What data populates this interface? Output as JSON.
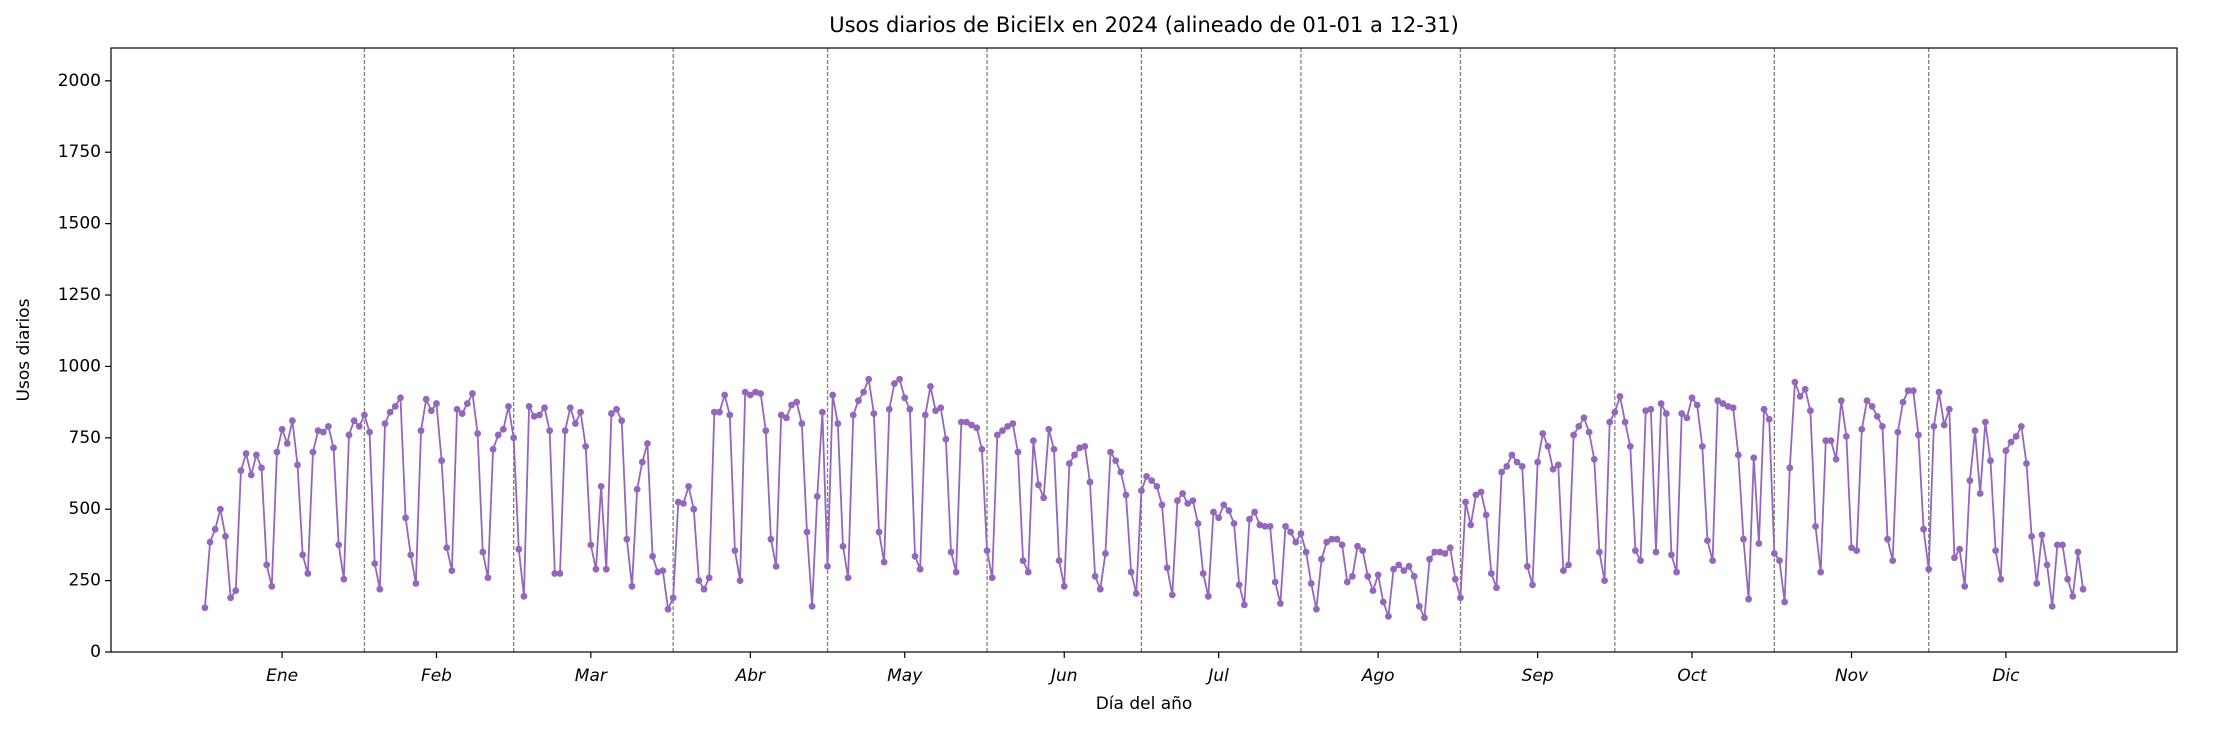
{
  "chart_data": {
    "type": "line",
    "title": "Usos diarios de BiciElx en 2024 (alineado de 01-01 a 12-31)",
    "xlabel": "Día del año",
    "ylabel": "Usos diarios",
    "color": "#9467bd",
    "x": [
      1,
      2,
      3,
      4,
      5,
      6,
      7,
      8,
      9,
      10,
      11,
      12,
      13,
      14,
      15,
      16,
      17,
      18,
      19,
      20,
      21,
      22,
      23,
      24,
      25,
      26,
      27,
      28,
      29,
      30,
      31,
      32,
      33,
      34,
      35,
      36,
      37,
      38,
      39,
      40,
      41,
      42,
      43,
      44,
      45,
      46,
      47,
      48,
      49,
      50,
      51,
      52,
      53,
      54,
      55,
      56,
      57,
      58,
      59,
      60,
      61,
      62,
      63,
      64,
      65,
      66,
      67,
      68,
      69,
      70,
      71,
      72,
      73,
      74,
      75,
      76,
      77,
      78,
      79,
      80,
      81,
      82,
      83,
      84,
      85,
      86,
      87,
      88,
      89,
      90,
      91,
      92,
      93,
      94,
      95,
      96,
      97,
      98,
      99,
      100,
      101,
      102,
      103,
      104,
      105,
      106,
      107,
      108,
      109,
      110,
      111,
      112,
      113,
      114,
      115,
      116,
      117,
      118,
      119,
      120,
      121,
      122,
      123,
      124,
      125,
      126,
      127,
      128,
      129,
      130,
      131,
      132,
      133,
      134,
      135,
      136,
      137,
      138,
      139,
      140,
      141,
      142,
      143,
      144,
      145,
      146,
      147,
      148,
      149,
      150,
      151,
      152,
      153,
      154,
      155,
      156,
      157,
      158,
      159,
      160,
      161,
      162,
      163,
      164,
      165,
      166,
      167,
      168,
      169,
      170,
      171,
      172,
      173,
      174,
      175,
      176,
      177,
      178,
      179,
      180,
      181,
      182,
      183,
      184,
      185,
      186,
      187,
      188,
      189,
      190,
      191,
      192,
      193,
      194,
      195,
      196,
      197,
      198,
      199,
      200,
      201,
      202,
      203,
      204,
      205,
      206,
      207,
      208,
      209,
      210,
      211,
      212,
      213,
      214,
      215,
      216,
      217,
      218,
      219,
      220,
      221,
      222,
      223,
      224,
      225,
      226,
      227,
      228,
      229,
      230,
      231,
      232,
      233,
      234,
      235,
      236,
      237,
      238,
      239,
      240,
      241,
      242,
      243,
      244,
      245,
      246,
      247,
      248,
      249,
      250,
      251,
      252,
      253,
      254,
      255,
      256,
      257,
      258,
      259,
      260,
      261,
      262,
      263,
      264,
      265,
      266,
      267,
      268,
      269,
      270,
      271,
      272,
      273,
      274,
      275,
      276,
      277,
      278,
      279,
      280,
      281,
      282,
      283,
      284,
      285,
      286,
      287,
      288,
      289,
      290,
      291,
      292,
      293,
      294,
      295,
      296,
      297,
      298,
      299,
      300,
      301,
      302,
      303,
      304,
      305,
      306,
      307,
      308,
      309,
      310,
      311,
      312,
      313,
      314,
      315,
      316,
      317,
      318,
      319,
      320,
      321,
      322,
      323,
      324,
      325,
      326,
      327,
      328,
      329,
      330,
      331,
      332,
      333,
      334,
      335,
      336,
      337,
      338,
      339,
      340,
      341,
      342,
      343,
      344,
      345,
      346,
      347,
      348,
      349,
      350,
      351,
      352,
      353,
      354,
      355,
      356,
      357,
      358,
      359,
      360,
      361,
      362,
      363,
      364,
      365,
      366
    ],
    "values": [
      155,
      385,
      430,
      500,
      405,
      190,
      215,
      635,
      695,
      620,
      690,
      645,
      305,
      230,
      700,
      780,
      730,
      810,
      655,
      340,
      275,
      700,
      775,
      770,
      790,
      715,
      375,
      255,
      760,
      810,
      790,
      830,
      770,
      310,
      220,
      800,
      840,
      860,
      890,
      470,
      340,
      240,
      775,
      885,
      845,
      870,
      670,
      365,
      285,
      850,
      835,
      870,
      905,
      765,
      350,
      260,
      710,
      760,
      780,
      860,
      750,
      360,
      195,
      860,
      825,
      830,
      855,
      775,
      275,
      275,
      775,
      855,
      800,
      840,
      720,
      375,
      290,
      580,
      290,
      835,
      850,
      810,
      395,
      230,
      570,
      665,
      730,
      335,
      280,
      285,
      150,
      190,
      525,
      520,
      580,
      500,
      250,
      220,
      260,
      840,
      840,
      900,
      830,
      355,
      250,
      910,
      900,
      910,
      905,
      775,
      395,
      300,
      830,
      820,
      865,
      875,
      800,
      420,
      160,
      545,
      840,
      300,
      900,
      800,
      370,
      260,
      830,
      880,
      910,
      955,
      835,
      420,
      315,
      850,
      940,
      955,
      890,
      850,
      335,
      290,
      830,
      930,
      845,
      855,
      745,
      350,
      280,
      805,
      805,
      795,
      785,
      710,
      355,
      260,
      760,
      775,
      790,
      800,
      700,
      320,
      280,
      740,
      585,
      540,
      780,
      710,
      320,
      230,
      660,
      690,
      715,
      720,
      595,
      265,
      220,
      345,
      700,
      670,
      630,
      550,
      280,
      205,
      565,
      615,
      600,
      580,
      515,
      295,
      200,
      530,
      555,
      520,
      530,
      450,
      275,
      195,
      490,
      470,
      515,
      495,
      450,
      235,
      165,
      465,
      490,
      445,
      440,
      440,
      245,
      170,
      440,
      420,
      385,
      415,
      350,
      240,
      150,
      325,
      385,
      395,
      395,
      375,
      245,
      265,
      370,
      355,
      265,
      215,
      270,
      175,
      125,
      290,
      305,
      285,
      300,
      265,
      160,
      120,
      325,
      350,
      350,
      345,
      365,
      255,
      190,
      525,
      445,
      550,
      560,
      480,
      275,
      225,
      630,
      650,
      690,
      665,
      650,
      300,
      235,
      665,
      765,
      720,
      640,
      655,
      285,
      305,
      760,
      790,
      820,
      770,
      675,
      350,
      250,
      805,
      840,
      895,
      805,
      720,
      355,
      320,
      845,
      850,
      350,
      870,
      835,
      340,
      280,
      835,
      820,
      890,
      865,
      720,
      390,
      320,
      880,
      870,
      860,
      855,
      690,
      395,
      185,
      680,
      380,
      850,
      815,
      345,
      320,
      175,
      645,
      945,
      895,
      920,
      845,
      440,
      280,
      740,
      740,
      675,
      880,
      755,
      365,
      355,
      780,
      880,
      860,
      825,
      790,
      395,
      320,
      770,
      875,
      915,
      915,
      760,
      430,
      290,
      790,
      910,
      795,
      850,
      330,
      360,
      230,
      600,
      775,
      555,
      805,
      670,
      355,
      255,
      705,
      735,
      755,
      790,
      660,
      405,
      240,
      410,
      305,
      160,
      375,
      375,
      255,
      195,
      350,
      220
    ],
    "xlim": [
      -17.25,
      384.25
    ],
    "xticks": [
      {
        "value": 16,
        "label": "Ene"
      },
      {
        "value": 46,
        "label": "Feb"
      },
      {
        "value": 76,
        "label": "Mar"
      },
      {
        "value": 107,
        "label": "Abr"
      },
      {
        "value": 137,
        "label": "May"
      },
      {
        "value": 168,
        "label": "Jun"
      },
      {
        "value": 198,
        "label": "Jul"
      },
      {
        "value": 229,
        "label": "Ago"
      },
      {
        "value": 260,
        "label": "Sep"
      },
      {
        "value": 290,
        "label": "Oct"
      },
      {
        "value": 321,
        "label": "Nov"
      },
      {
        "value": 351,
        "label": "Dic"
      }
    ],
    "month_boundaries": [
      32,
      61,
      92,
      122,
      153,
      183,
      214,
      245,
      275,
      306,
      336
    ],
    "ylim": [
      0,
      2115
    ],
    "yticks": [
      0,
      250,
      500,
      750,
      1000,
      1250,
      1500,
      1750,
      2000
    ]
  }
}
